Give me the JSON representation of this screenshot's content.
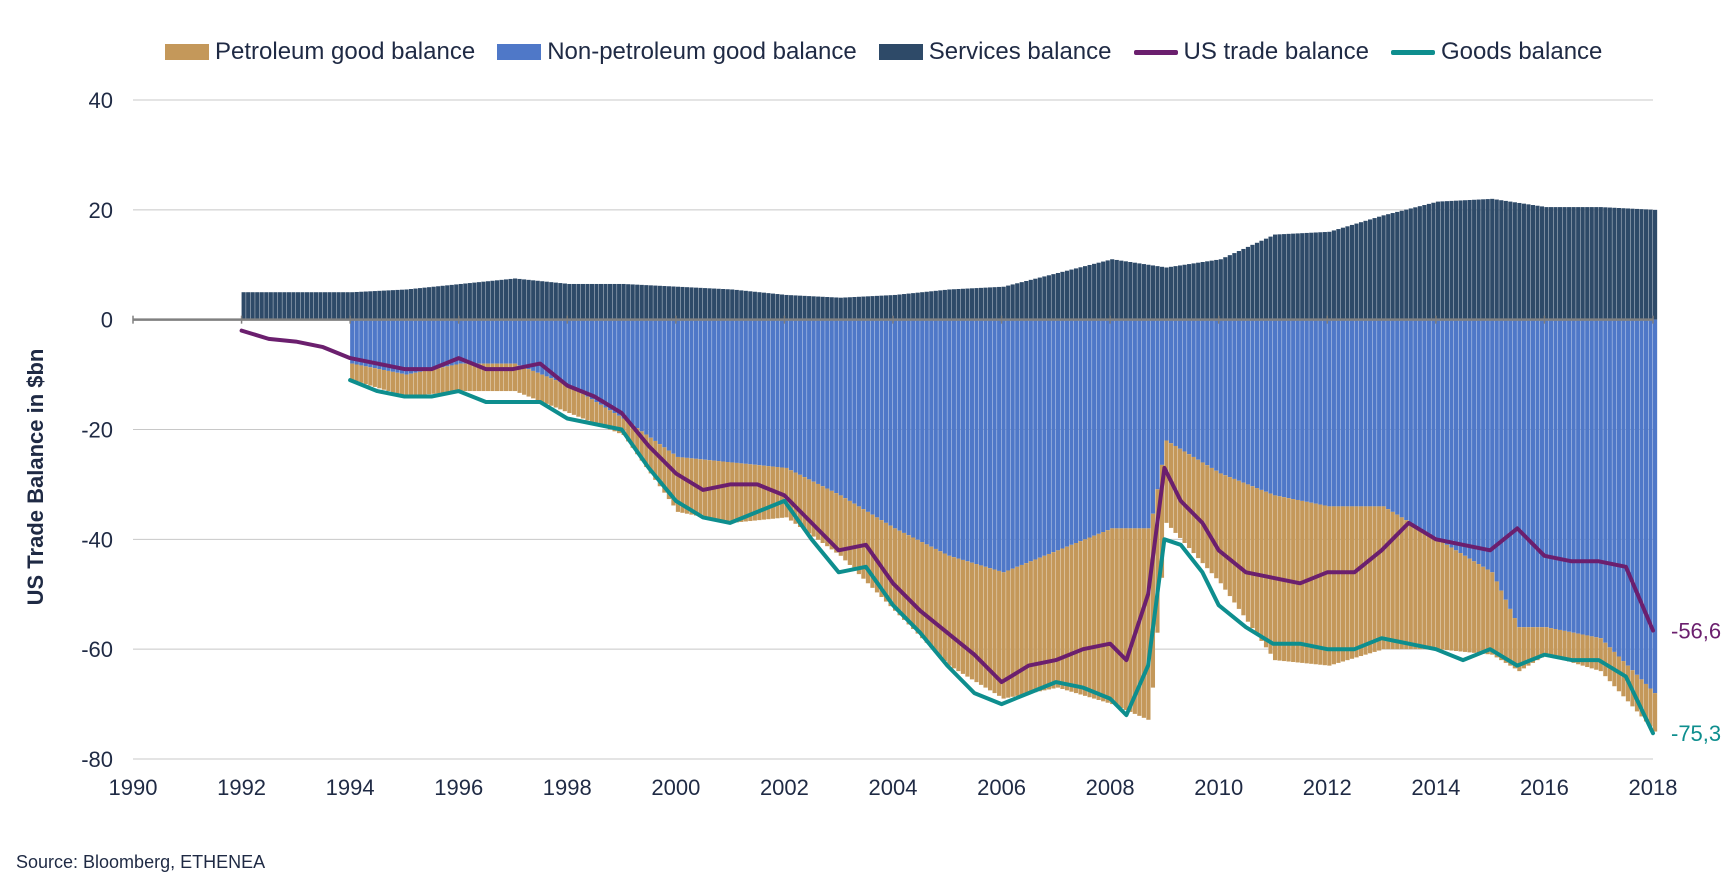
{
  "source": "Source: Bloomberg, ETHENEA",
  "legend": {
    "items": [
      {
        "label": "Petroleum good balance",
        "kind": "box",
        "color": "#C4985A"
      },
      {
        "label": "Non-petroleum good balance",
        "kind": "box",
        "color": "#4F78C8"
      },
      {
        "label": "Services balance",
        "kind": "box",
        "color": "#2E4A68"
      },
      {
        "label": "US trade balance",
        "kind": "line",
        "color": "#6B1F6E"
      },
      {
        "label": "Goods balance",
        "kind": "line",
        "color": "#0E8E8E"
      }
    ]
  },
  "chart_data": {
    "type": "area",
    "ylabel": "US Trade Balance in $bn",
    "xlabel": "",
    "xlim": [
      1990,
      2018
    ],
    "ylim": [
      -80,
      40
    ],
    "x_ticks": [
      "1990",
      "1992",
      "1994",
      "1996",
      "1998",
      "2000",
      "2002",
      "2004",
      "2006",
      "2008",
      "2010",
      "2012",
      "2014",
      "2016",
      "2018"
    ],
    "y_ticks": [
      "40",
      "20",
      "0",
      "-20",
      "-40",
      "-60",
      "-80"
    ],
    "gridlines": true,
    "legend_position": "top",
    "end_labels": [
      {
        "series": "US trade balance",
        "text": "-56,6",
        "value": -56.6,
        "color": "#6B1F6E"
      },
      {
        "series": "Goods balance",
        "text": "-75,3",
        "value": -75.3,
        "color": "#0E8E8E"
      }
    ],
    "series": [
      {
        "name": "Services balance",
        "kind": "bar",
        "color": "#2E4A68",
        "x": [
          1992,
          1993,
          1994,
          1995,
          1996,
          1997,
          1998,
          1999,
          2000,
          2001,
          2002,
          2003,
          2004,
          2005,
          2006,
          2007,
          2008,
          2009,
          2010,
          2011,
          2012,
          2013,
          2014,
          2015,
          2016,
          2017,
          2018
        ],
        "y": [
          5,
          5,
          5,
          5.5,
          6.5,
          7.5,
          6.5,
          6.5,
          6,
          5.5,
          4.5,
          4,
          4.5,
          5.5,
          6,
          8.5,
          11,
          9.5,
          11,
          15.5,
          16,
          19,
          21.5,
          22,
          20.5,
          20.5,
          20
        ]
      },
      {
        "name": "Non-petroleum good balance",
        "kind": "bar",
        "color": "#4F78C8",
        "x": [
          1994,
          1995,
          1996,
          1997,
          1998,
          1999,
          2000,
          2001,
          2002,
          2003,
          2004,
          2005,
          2006,
          2007,
          2008,
          2008.7,
          2009,
          2010,
          2011,
          2012,
          2013,
          2014,
          2015,
          2015.5,
          2016,
          2017,
          2018
        ],
        "y": [
          -8,
          -10,
          -8,
          -8,
          -12,
          -18,
          -25,
          -26,
          -27,
          -32,
          -38,
          -43,
          -46,
          -42,
          -38,
          -38,
          -22,
          -28,
          -32,
          -34,
          -34,
          -40,
          -46,
          -56,
          -56,
          -58,
          -68
        ]
      },
      {
        "name": "Petroleum good balance",
        "kind": "bar",
        "color": "#C4985A",
        "x": [
          1994,
          1995,
          1996,
          1997,
          1998,
          1999,
          2000,
          2001,
          2002,
          2003,
          2004,
          2005,
          2006,
          2007,
          2008,
          2008.7,
          2009,
          2010,
          2011,
          2012,
          2013,
          2014,
          2015,
          2015.5,
          2016,
          2017,
          2018
        ],
        "y": [
          -3,
          -4,
          -5,
          -5,
          -5,
          -3,
          -10,
          -11,
          -9,
          -11,
          -15,
          -20,
          -23,
          -25,
          -32,
          -35,
          -15,
          -20,
          -30,
          -29,
          -26,
          -20,
          -15,
          -8,
          -5,
          -6,
          -7
        ]
      },
      {
        "name": "US trade balance",
        "kind": "line",
        "color": "#6B1F6E",
        "x": [
          1992,
          1992.5,
          1993,
          1993.5,
          1994,
          1994.5,
          1995,
          1995.5,
          1996,
          1996.5,
          1997,
          1997.5,
          1998,
          1998.5,
          1999,
          1999.5,
          2000,
          2000.5,
          2001,
          2001.5,
          2002,
          2002.5,
          2003,
          2003.5,
          2004,
          2004.5,
          2005,
          2005.5,
          2006,
          2006.5,
          2007,
          2007.5,
          2008,
          2008.3,
          2008.7,
          2009,
          2009.3,
          2009.7,
          2010,
          2010.5,
          2011,
          2011.5,
          2012,
          2012.5,
          2013,
          2013.5,
          2014,
          2014.5,
          2015,
          2015.5,
          2016,
          2016.5,
          2017,
          2017.5,
          2018
        ],
        "y": [
          -2,
          -3.5,
          -4,
          -5,
          -7,
          -8,
          -9,
          -9,
          -7,
          -9,
          -9,
          -8,
          -12,
          -14,
          -17,
          -23,
          -28,
          -31,
          -30,
          -30,
          -32,
          -37,
          -42,
          -41,
          -48,
          -53,
          -57,
          -61,
          -66,
          -63,
          -62,
          -60,
          -59,
          -62,
          -50,
          -27,
          -33,
          -37,
          -42,
          -46,
          -47,
          -48,
          -46,
          -46,
          -42,
          -37,
          -40,
          -41,
          -42,
          -38,
          -43,
          -44,
          -44,
          -45,
          -56.6
        ]
      },
      {
        "name": "Goods balance",
        "kind": "line",
        "color": "#0E8E8E",
        "x": [
          1994,
          1994.5,
          1995,
          1995.5,
          1996,
          1996.5,
          1997,
          1997.5,
          1998,
          1998.5,
          1999,
          1999.5,
          2000,
          2000.5,
          2001,
          2001.5,
          2002,
          2002.5,
          2003,
          2003.5,
          2004,
          2004.5,
          2005,
          2005.5,
          2006,
          2006.5,
          2007,
          2007.5,
          2008,
          2008.3,
          2008.7,
          2009,
          2009.3,
          2009.7,
          2010,
          2010.5,
          2011,
          2011.5,
          2012,
          2012.5,
          2013,
          2013.5,
          2014,
          2014.5,
          2015,
          2015.5,
          2016,
          2016.5,
          2017,
          2017.5,
          2018
        ],
        "y": [
          -11,
          -13,
          -14,
          -14,
          -13,
          -15,
          -15,
          -15,
          -18,
          -19,
          -20,
          -27,
          -33,
          -36,
          -37,
          -35,
          -33,
          -40,
          -46,
          -45,
          -52,
          -57,
          -63,
          -68,
          -70,
          -68,
          -66,
          -67,
          -69,
          -72,
          -63,
          -40,
          -41,
          -46,
          -52,
          -56,
          -59,
          -59,
          -60,
          -60,
          -58,
          -59,
          -60,
          -62,
          -60,
          -63,
          -61,
          -62,
          -62,
          -65,
          -75.3
        ]
      }
    ]
  }
}
